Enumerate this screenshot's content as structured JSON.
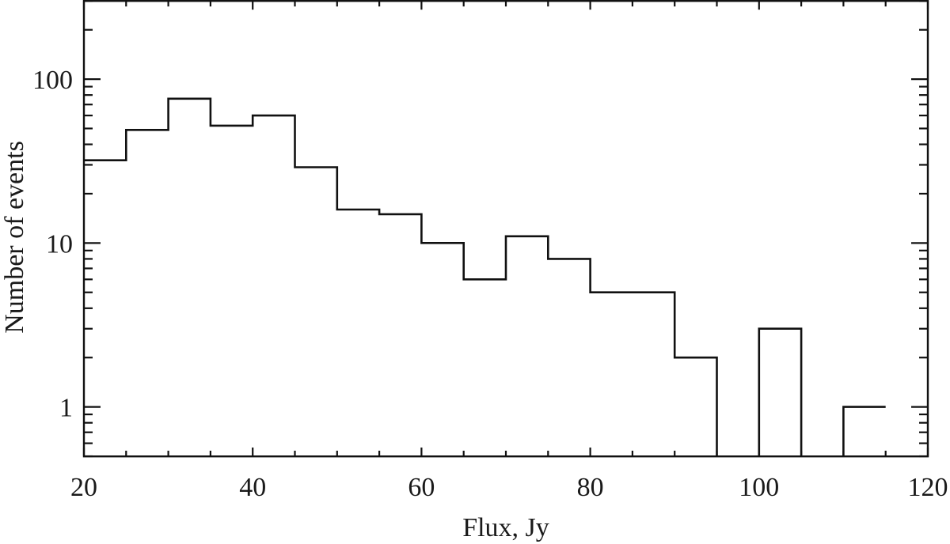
{
  "chart_data": {
    "type": "bar",
    "subtype": "step-histogram",
    "title": "",
    "xlabel": "Flux, Jy",
    "ylabel": "Number of events",
    "xscale": "linear",
    "yscale": "log",
    "xlim": [
      20,
      120
    ],
    "ylim": [
      0.5,
      300
    ],
    "grid": false,
    "legend": null,
    "x_ticks": [
      20,
      40,
      60,
      80,
      100,
      120
    ],
    "x_tick_labels": [
      "20",
      "40",
      "60",
      "80",
      "100",
      "120"
    ],
    "x_minor_step": 5,
    "y_ticks": [
      1,
      10,
      100
    ],
    "y_tick_labels": [
      "1",
      "10",
      "100"
    ],
    "bin_width": 5,
    "bins": [
      {
        "from": 20,
        "to": 25,
        "count": 32
      },
      {
        "from": 25,
        "to": 30,
        "count": 49
      },
      {
        "from": 30,
        "to": 35,
        "count": 76
      },
      {
        "from": 35,
        "to": 40,
        "count": 52
      },
      {
        "from": 40,
        "to": 45,
        "count": 60
      },
      {
        "from": 45,
        "to": 50,
        "count": 29
      },
      {
        "from": 50,
        "to": 55,
        "count": 16
      },
      {
        "from": 55,
        "to": 60,
        "count": 15
      },
      {
        "from": 60,
        "to": 65,
        "count": 10
      },
      {
        "from": 65,
        "to": 70,
        "count": 6
      },
      {
        "from": 70,
        "to": 75,
        "count": 11
      },
      {
        "from": 75,
        "to": 80,
        "count": 8
      },
      {
        "from": 80,
        "to": 85,
        "count": 5
      },
      {
        "from": 85,
        "to": 90,
        "count": 5
      },
      {
        "from": 90,
        "to": 95,
        "count": 2
      },
      {
        "from": 95,
        "to": 100,
        "count": 0
      },
      {
        "from": 100,
        "to": 105,
        "count": 3
      },
      {
        "from": 105,
        "to": 110,
        "count": 0
      },
      {
        "from": 110,
        "to": 115,
        "count": 1
      }
    ],
    "categories": [
      "20-25",
      "25-30",
      "30-35",
      "35-40",
      "40-45",
      "45-50",
      "50-55",
      "55-60",
      "60-65",
      "65-70",
      "70-75",
      "75-80",
      "80-85",
      "85-90",
      "90-95",
      "95-100",
      "100-105",
      "105-110",
      "110-115"
    ],
    "values": [
      32,
      49,
      76,
      52,
      60,
      29,
      16,
      15,
      10,
      6,
      11,
      8,
      5,
      5,
      2,
      0,
      3,
      0,
      1
    ],
    "line_color": "#111111"
  }
}
